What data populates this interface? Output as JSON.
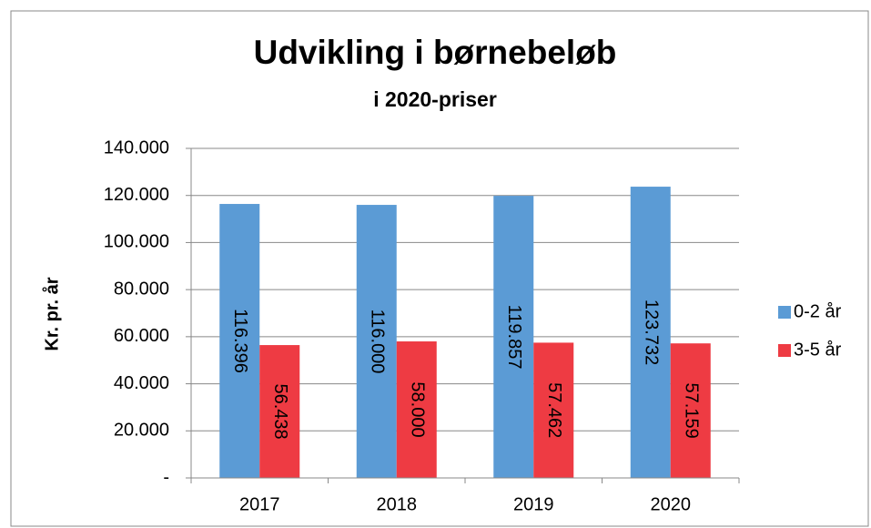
{
  "chart_data": {
    "type": "bar",
    "title": "Udvikling i børnebeløb",
    "subtitle": "i 2020-priser",
    "y_label": "Kr. pr. år",
    "categories": [
      "2017",
      "2018",
      "2019",
      "2020"
    ],
    "series": [
      {
        "name": "0-2 år",
        "color": "#5b9bd5",
        "values": [
          116396,
          116000,
          119857,
          123732
        ],
        "value_labels": [
          "116.396",
          "116.000",
          "119.857",
          "123.732"
        ]
      },
      {
        "name": "3-5 år",
        "color": "#ee3b43",
        "values": [
          56438,
          58000,
          57462,
          57159
        ],
        "value_labels": [
          "56.438",
          "58.000",
          "57.462",
          "57.159"
        ]
      }
    ],
    "ylim": [
      0,
      140000
    ],
    "yticks": [
      {
        "value": 0,
        "label": "-"
      },
      {
        "value": 20000,
        "label": "20.000"
      },
      {
        "value": 40000,
        "label": "40.000"
      },
      {
        "value": 60000,
        "label": "60.000"
      },
      {
        "value": 80000,
        "label": "80.000"
      },
      {
        "value": 100000,
        "label": "100.000"
      },
      {
        "value": 120000,
        "label": "120.000"
      },
      {
        "value": 140000,
        "label": "140.000"
      }
    ],
    "grid": true,
    "legend": "right"
  }
}
